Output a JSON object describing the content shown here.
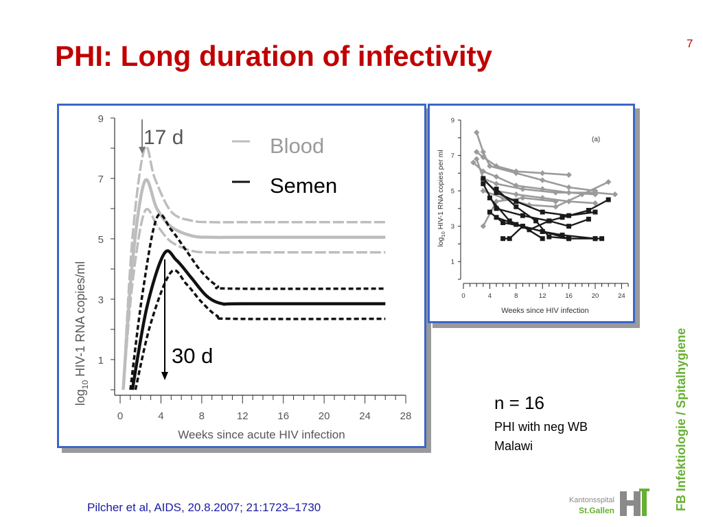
{
  "slide": {
    "title": "PHI: Long duration of infectivity",
    "number": "7",
    "n_label": "n = 16",
    "description_line1": "PHI  with neg WB",
    "description_line2": "Malawi",
    "citation": "Pilcher et al, AIDS, 20.8.2007; 21:1723–1730",
    "side_text": "FB Infektiologie / Spitalhygiene",
    "logo": {
      "line1": "Kantonsspital",
      "line2": "St.Gallen"
    },
    "colors": {
      "title": "#c00000",
      "panel_border": "#3b66c8",
      "citation": "#1a1aa0",
      "side_text": "#66b032",
      "blood": "#c8c8c8",
      "semen": "#111111"
    }
  },
  "chart_data": [
    {
      "type": "line",
      "xlabel": "Weeks since acute HIV infection",
      "ylabel_prefix": "log",
      "ylabel_sub": "10",
      "ylabel_rest": " HIV-1 RNA copies/ml",
      "xlim": [
        0,
        28
      ],
      "ylim": [
        0,
        9
      ],
      "x_ticks": [
        "0",
        "4",
        "8",
        "12",
        "16",
        "20",
        "24",
        "28"
      ],
      "y_ticks": [
        "1",
        "3",
        "5",
        "7",
        "9"
      ],
      "legend": [
        {
          "name": "Blood",
          "color": "#bdbdbd"
        },
        {
          "name": "Semen",
          "color": "#111111"
        }
      ],
      "annotations": {
        "peak_blood": "17 d",
        "peak_semen": "30 d"
      },
      "series": [
        {
          "group": "Blood",
          "style": "dashed",
          "points": [
            [
              0.3,
              0
            ],
            [
              1.2,
              5
            ],
            [
              2.4,
              8
            ],
            [
              3.4,
              7.0
            ],
            [
              5,
              5.9
            ],
            [
              7,
              5.6
            ],
            [
              9,
              5.55
            ],
            [
              12,
              5.55
            ],
            [
              26,
              5.55
            ]
          ]
        },
        {
          "group": "Blood",
          "style": "solid",
          "points": [
            [
              0.3,
              0
            ],
            [
              1.2,
              4.2
            ],
            [
              2.4,
              6.9
            ],
            [
              3.6,
              6.0
            ],
            [
              5,
              5.4
            ],
            [
              7,
              5.1
            ],
            [
              9,
              5.05
            ],
            [
              12,
              5.05
            ],
            [
              26,
              5.05
            ]
          ]
        },
        {
          "group": "Blood",
          "style": "dashed",
          "points": [
            [
              0.3,
              0
            ],
            [
              1.2,
              3.5
            ],
            [
              2.4,
              5.9
            ],
            [
              3.7,
              5.4
            ],
            [
              5,
              4.9
            ],
            [
              7,
              4.6
            ],
            [
              9,
              4.55
            ],
            [
              12,
              4.55
            ],
            [
              26,
              4.55
            ]
          ]
        },
        {
          "group": "Semen",
          "style": "dashed",
          "points": [
            [
              1,
              0
            ],
            [
              2.2,
              3.2
            ],
            [
              3.6,
              5.7
            ],
            [
              5,
              5.3
            ],
            [
              6.5,
              4.6
            ],
            [
              8,
              3.9
            ],
            [
              9.5,
              3.45
            ],
            [
              11,
              3.35
            ],
            [
              26,
              3.35
            ]
          ]
        },
        {
          "group": "Semen",
          "style": "solid",
          "points": [
            [
              1.2,
              0
            ],
            [
              2.6,
              2.7
            ],
            [
              4.3,
              4.5
            ],
            [
              5.5,
              4.3
            ],
            [
              7,
              3.7
            ],
            [
              8.5,
              3.1
            ],
            [
              10,
              2.85
            ],
            [
              12,
              2.85
            ],
            [
              26,
              2.85
            ]
          ]
        },
        {
          "group": "Semen",
          "style": "dashed",
          "points": [
            [
              1.5,
              0
            ],
            [
              3,
              2.2
            ],
            [
              5,
              3.9
            ],
            [
              6.5,
              3.5
            ],
            [
              8,
              2.9
            ],
            [
              9.5,
              2.45
            ],
            [
              11,
              2.35
            ],
            [
              26,
              2.35
            ]
          ]
        }
      ]
    },
    {
      "type": "line",
      "panel_label": "(a)",
      "xlabel": "Weeks since HIV infection",
      "ylabel_prefix": "log",
      "ylabel_sub": "10",
      "ylabel_rest": " HIV-1 RNA copies per ml",
      "xlim": [
        0,
        25
      ],
      "ylim": [
        0,
        9
      ],
      "x_ticks": [
        "0",
        "4",
        "8",
        "12",
        "16",
        "20",
        "24"
      ],
      "y_ticks": [
        "1",
        "3",
        "5",
        "7",
        "9"
      ],
      "series": [
        {
          "group": "Blood",
          "points": [
            [
              2,
              8.3
            ],
            [
              3,
              7.2
            ],
            [
              4,
              6.4
            ],
            [
              8,
              6.0
            ],
            [
              12,
              5.6
            ],
            [
              16,
              5.2
            ],
            [
              20,
              5.0
            ]
          ]
        },
        {
          "group": "Blood",
          "points": [
            [
              2,
              7.2
            ],
            [
              3,
              6.9
            ],
            [
              5,
              6.4
            ],
            [
              8,
              6.1
            ],
            [
              12,
              6.0
            ],
            [
              16,
              5.9
            ]
          ]
        },
        {
          "group": "Blood",
          "points": [
            [
              1.5,
              6.6
            ],
            [
              3,
              6.1
            ],
            [
              5,
              5.8
            ],
            [
              8,
              5.3
            ],
            [
              12,
              5.1
            ],
            [
              16,
              4.9
            ],
            [
              20,
              4.8
            ]
          ]
        },
        {
          "group": "Blood",
          "points": [
            [
              2,
              6.8
            ],
            [
              3,
              5.7
            ],
            [
              5,
              5.4
            ],
            [
              9,
              5.1
            ],
            [
              14,
              4.9
            ],
            [
              20,
              4.9
            ],
            [
              23,
              4.8
            ]
          ]
        },
        {
          "group": "Blood",
          "points": [
            [
              3,
              5.6
            ],
            [
              5,
              5.0
            ],
            [
              8,
              4.8
            ],
            [
              12,
              4.6
            ],
            [
              16,
              4.4
            ],
            [
              20,
              4.3
            ]
          ]
        },
        {
          "group": "Blood",
          "points": [
            [
              3,
              5.0
            ],
            [
              6,
              4.6
            ],
            [
              10,
              4.2
            ],
            [
              14,
              4.1
            ],
            [
              18,
              4.8
            ],
            [
              22,
              5.5
            ]
          ]
        },
        {
          "group": "Blood",
          "points": [
            [
              3,
              3.0
            ],
            [
              5,
              4.4
            ],
            [
              9,
              4.6
            ],
            [
              14,
              4.4
            ]
          ]
        },
        {
          "group": "Semen",
          "points": [
            [
              3,
              5.7
            ],
            [
              5,
              4.9
            ],
            [
              8,
              4.4
            ],
            [
              12,
              3.8
            ],
            [
              16,
              3.6
            ],
            [
              20,
              3.8
            ]
          ]
        },
        {
          "group": "Semen",
          "points": [
            [
              3,
              5.4
            ],
            [
              5,
              4.0
            ],
            [
              9,
              3.6
            ],
            [
              13,
              3.3
            ],
            [
              16,
              3.0
            ],
            [
              19,
              3.4
            ]
          ]
        },
        {
          "group": "Semen",
          "points": [
            [
              4,
              4.6
            ],
            [
              7,
              3.3
            ],
            [
              10,
              2.8
            ],
            [
              13,
              3.3
            ],
            [
              15,
              3.5
            ],
            [
              19,
              3.9
            ],
            [
              22,
              4.5
            ]
          ]
        },
        {
          "group": "Semen",
          "points": [
            [
              4,
              3.8
            ],
            [
              6,
              3.2
            ],
            [
              9,
              3.0
            ],
            [
              12,
              2.7
            ],
            [
              16,
              2.3
            ],
            [
              20,
              2.3
            ]
          ]
        },
        {
          "group": "Semen",
          "points": [
            [
              5,
              3.5
            ],
            [
              8,
              3.1
            ],
            [
              12,
              2.7
            ],
            [
              15,
              2.5
            ],
            [
              20,
              2.3
            ],
            [
              21,
              2.3
            ]
          ]
        },
        {
          "group": "Semen",
          "points": [
            [
              5,
              5.1
            ],
            [
              8,
              4.1
            ],
            [
              11,
              3.3
            ],
            [
              13,
              2.4
            ],
            [
              16,
              2.3
            ]
          ]
        },
        {
          "group": "Semen",
          "points": [
            [
              6,
              2.3
            ],
            [
              7,
              2.3
            ],
            [
              9,
              3.0
            ],
            [
              12,
              2.3
            ]
          ]
        }
      ]
    }
  ]
}
